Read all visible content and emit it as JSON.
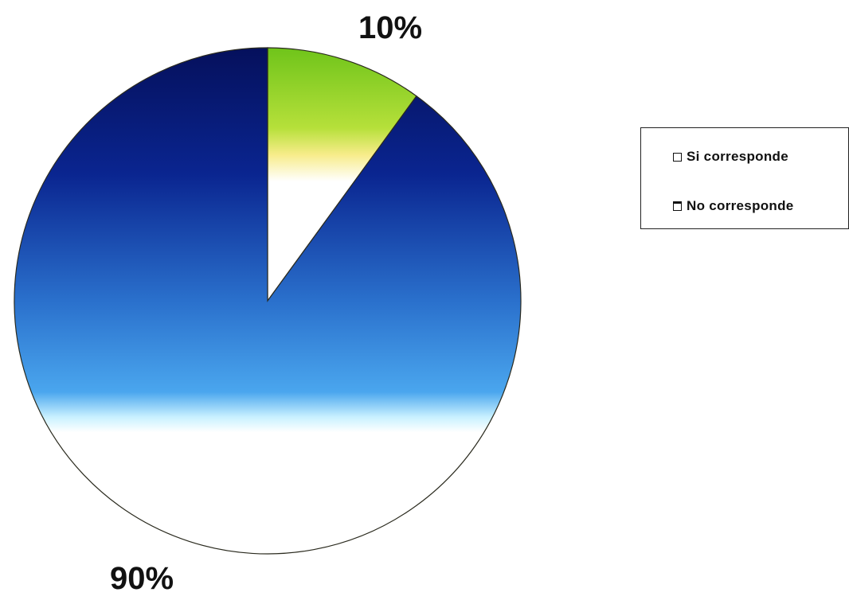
{
  "chart_data": {
    "type": "pie",
    "slices": [
      {
        "label": "Si corresponde",
        "value": 10,
        "display": "10%",
        "color_top": "#7ccf1e",
        "color_bottom": "#ffffff"
      },
      {
        "label": "No corresponde",
        "value": 90,
        "display": "90%",
        "color_top": "#05105c",
        "color_bottom": "#ffffff"
      }
    ],
    "start_angle_deg": 0,
    "legend_position": "right",
    "legend": [
      "Si corresponde",
      "No corresponde"
    ]
  }
}
